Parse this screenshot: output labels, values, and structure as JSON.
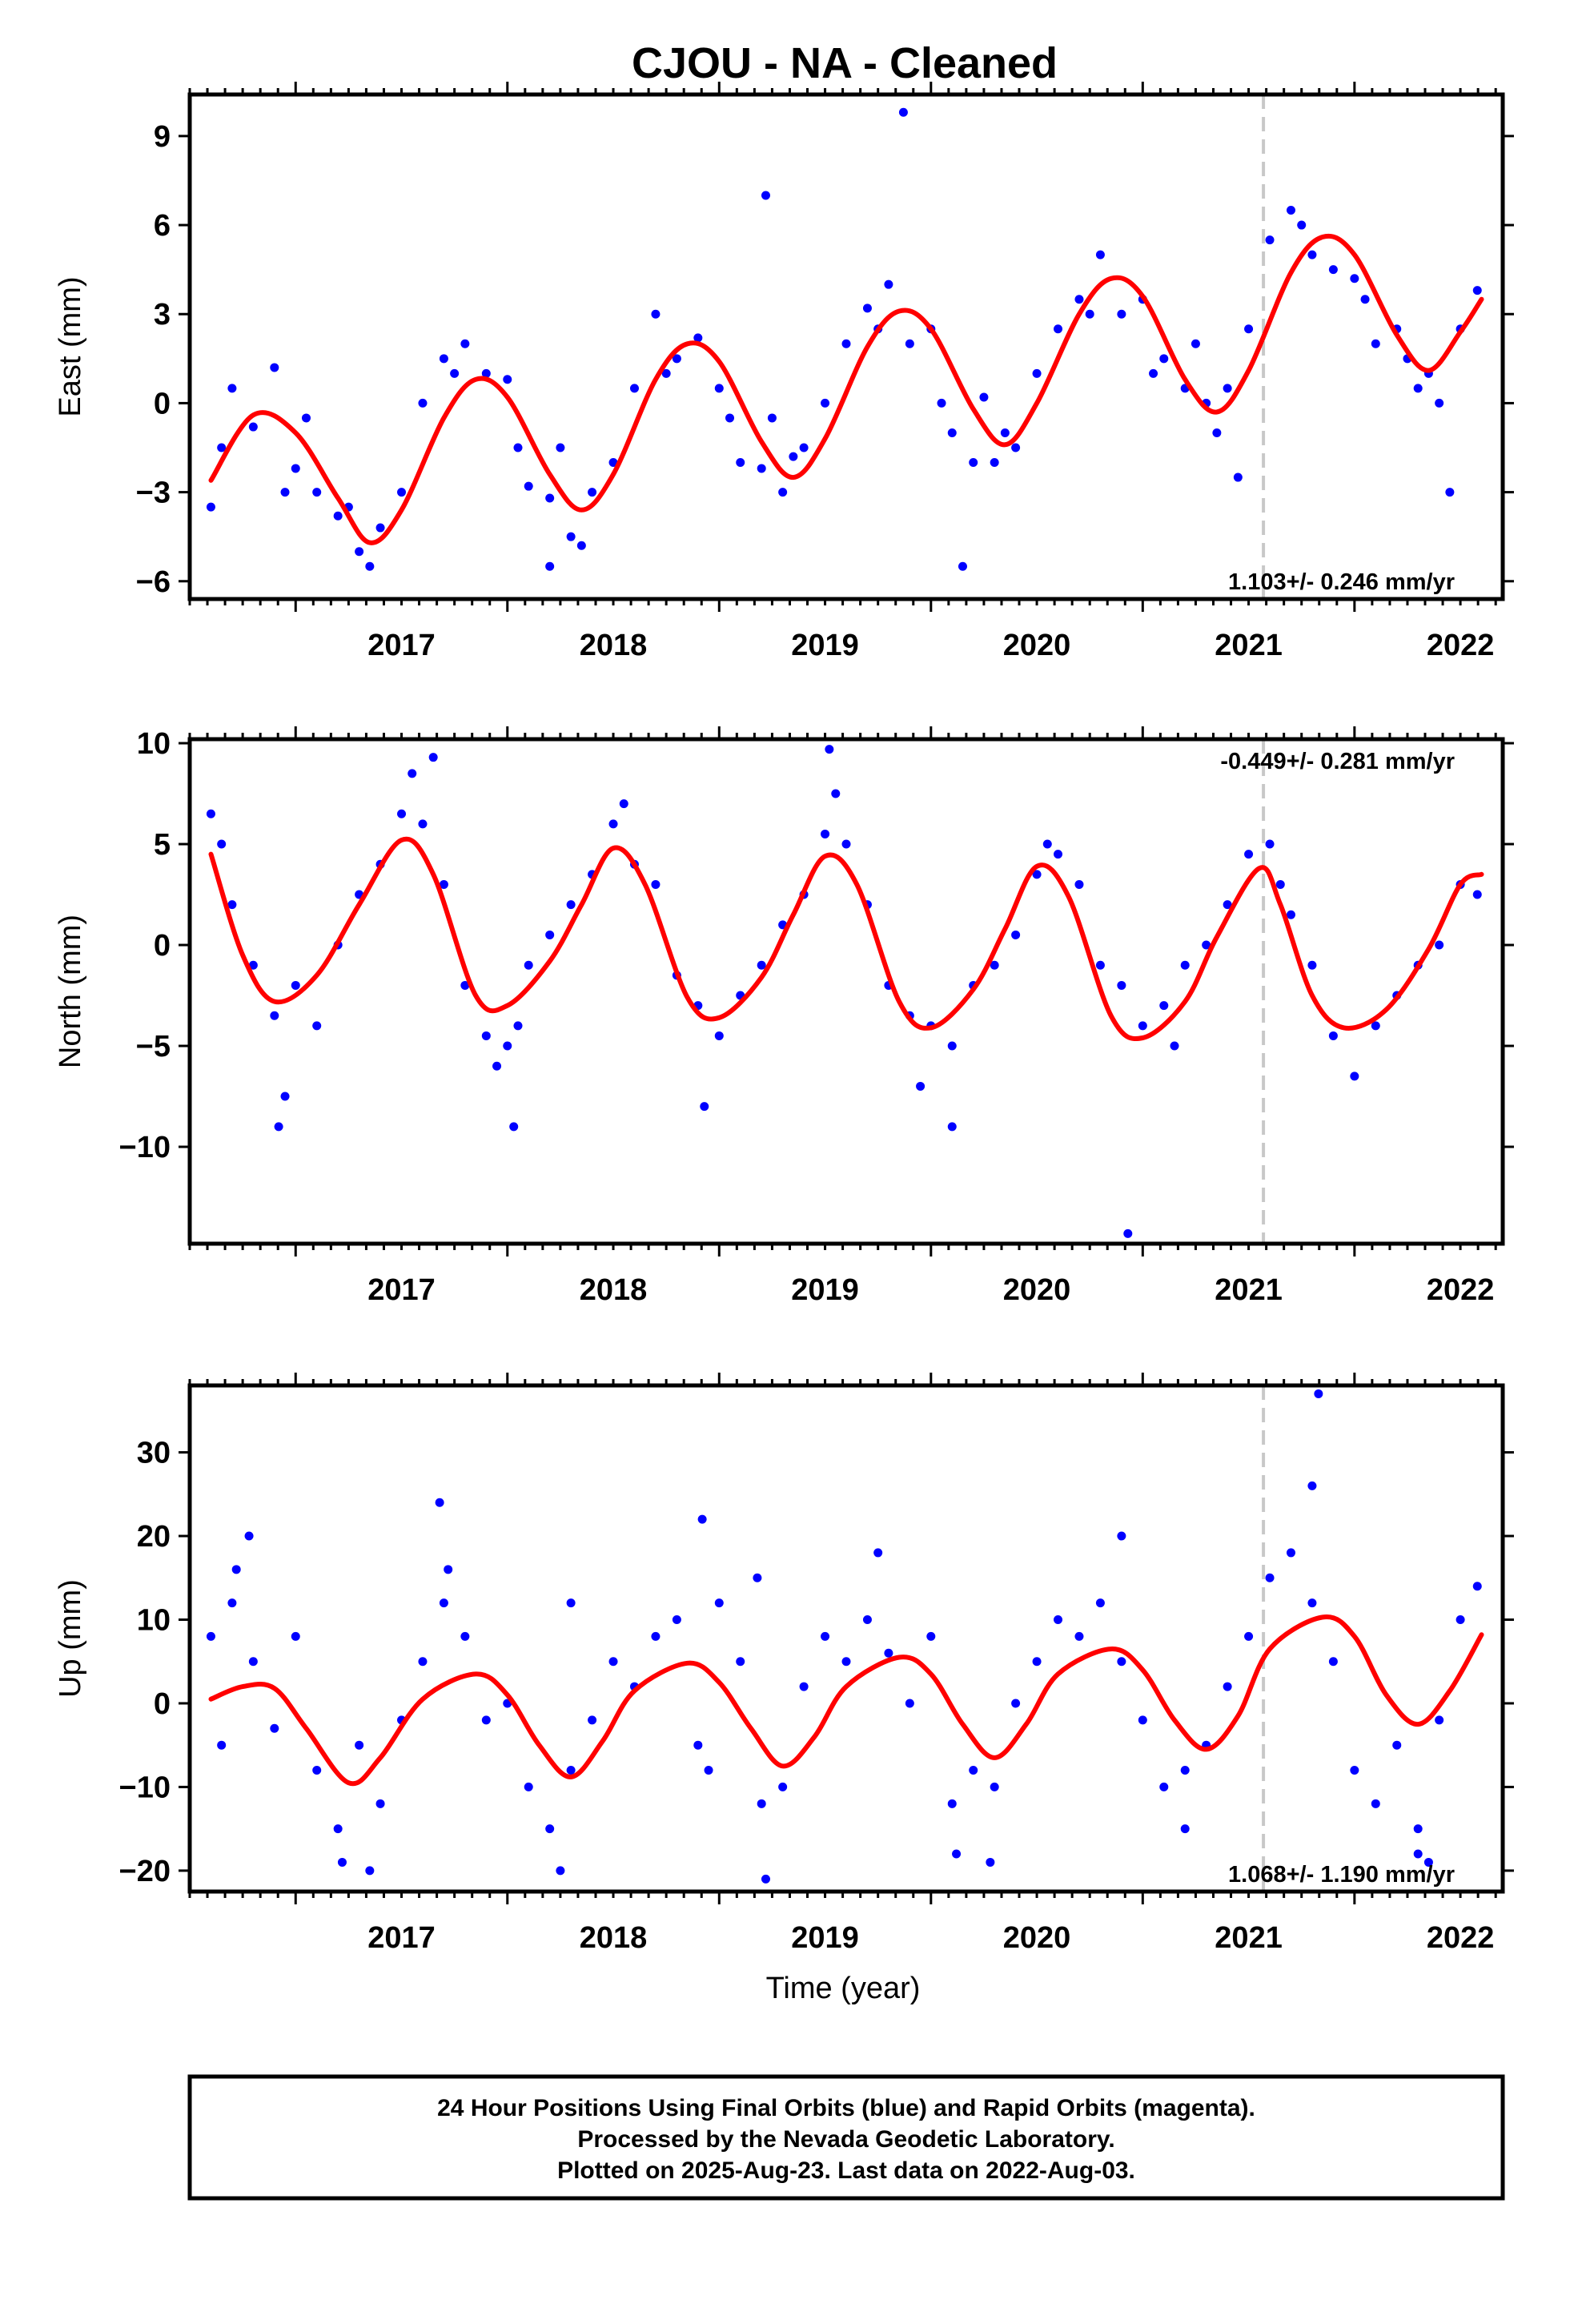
{
  "title": "CJOU  - NA - Cleaned",
  "xlabel": "Time (year)",
  "footer": {
    "line1": "24 Hour Positions Using Final Orbits (blue) and Rapid Orbits (magenta).",
    "line2": "Processed by the Nevada Geodetic Laboratory.",
    "line3": "Plotted on 2025-Aug-23. Last data on 2022-Aug-03."
  },
  "colors": {
    "points": "#0000ff",
    "fit": "#ff0000",
    "equipment_change": "#c8c8c8",
    "frame": "#000000"
  },
  "chart_data": [
    {
      "type": "scatter",
      "ylabel": "East (mm)",
      "xlim": [
        2016.5,
        2022.7
      ],
      "ylim": [
        -6.6,
        10.4
      ],
      "xticks": [
        2017,
        2018,
        2019,
        2020,
        2021,
        2022
      ],
      "yticks": [
        -6,
        -3,
        0,
        3,
        6,
        9
      ],
      "rate_text": "1.103+/- 0.246 mm/yr",
      "rate_position": "bottom-right",
      "equipment_change_x": 2021.57,
      "series": [
        {
          "style": "fit-line",
          "x": [
            2016.6,
            2016.8,
            2017.0,
            2017.2,
            2017.35,
            2017.5,
            2017.7,
            2017.85,
            2018.0,
            2018.2,
            2018.35,
            2018.5,
            2018.7,
            2018.85,
            2019.0,
            2019.2,
            2019.35,
            2019.5,
            2019.7,
            2019.85,
            2020.0,
            2020.2,
            2020.35,
            2020.5,
            2020.7,
            2020.85,
            2021.0,
            2021.2,
            2021.35,
            2021.5,
            2021.7,
            2021.85,
            2022.0,
            2022.2,
            2022.35,
            2022.5,
            2022.6
          ],
          "y": [
            -2.6,
            -0.4,
            -1.0,
            -3.2,
            -4.7,
            -3.6,
            -0.5,
            0.8,
            0.2,
            -2.4,
            -3.6,
            -2.4,
            0.8,
            2.0,
            1.4,
            -1.3,
            -2.5,
            -1.2,
            1.9,
            3.1,
            2.5,
            -0.2,
            -1.4,
            0.0,
            3.0,
            4.2,
            3.6,
            0.8,
            -0.3,
            1.1,
            4.4,
            5.6,
            5.0,
            2.3,
            1.1,
            2.4,
            3.5
          ]
        },
        {
          "style": "daily-points",
          "x": [
            2016.6,
            2016.65,
            2016.7,
            2016.8,
            2016.9,
            2017.0,
            2017.05,
            2017.1,
            2017.2,
            2017.3,
            2017.35,
            2017.4,
            2017.5,
            2017.6,
            2017.7,
            2017.8,
            2017.9,
            2018.0,
            2018.05,
            2018.1,
            2018.2,
            2018.3,
            2018.35,
            2018.4,
            2018.5,
            2018.6,
            2018.7,
            2018.8,
            2018.9,
            2019.0,
            2019.05,
            2019.1,
            2019.2,
            2019.3,
            2019.35,
            2019.4,
            2019.5,
            2019.6,
            2019.7,
            2019.8,
            2019.9,
            2020.0,
            2020.05,
            2020.1,
            2020.2,
            2020.3,
            2020.35,
            2020.4,
            2020.5,
            2020.6,
            2020.7,
            2020.8,
            2020.9,
            2021.0,
            2021.05,
            2021.1,
            2021.2,
            2021.3,
            2021.35,
            2021.4,
            2021.5,
            2021.6,
            2021.7,
            2021.8,
            2021.9,
            2022.0,
            2022.05,
            2022.1,
            2022.2,
            2022.3,
            2022.35,
            2022.4,
            2022.5,
            2022.58,
            2016.95,
            2017.25,
            2017.75,
            2018.25,
            2018.75,
            2019.25,
            2019.75,
            2020.25,
            2020.75,
            2021.25,
            2021.75,
            2022.25,
            2019.22,
            2019.87,
            2018.2,
            2020.15,
            2021.45,
            2022.45
          ],
          "y": [
            -3.5,
            -1.5,
            0.5,
            -0.8,
            1.2,
            -2.2,
            -0.5,
            -3.0,
            -3.8,
            -5.0,
            -5.5,
            -4.2,
            -3.0,
            0.0,
            1.5,
            2.0,
            1.0,
            0.8,
            -1.5,
            -2.8,
            -3.2,
            -4.5,
            -4.8,
            -3.0,
            -2.0,
            0.5,
            3.0,
            1.5,
            2.2,
            0.5,
            -0.5,
            -2.0,
            -2.2,
            -3.0,
            -1.8,
            -1.5,
            0.0,
            2.0,
            3.2,
            4.0,
            2.0,
            2.5,
            0.0,
            -1.0,
            -2.0,
            -2.0,
            -1.0,
            -1.5,
            1.0,
            2.5,
            3.5,
            5.0,
            3.0,
            3.5,
            1.0,
            1.5,
            0.5,
            0.0,
            -1.0,
            0.5,
            2.5,
            5.5,
            6.5,
            5.0,
            4.5,
            4.2,
            3.5,
            2.0,
            2.5,
            0.5,
            1.0,
            0.0,
            2.5,
            3.8,
            -3.0,
            -3.5,
            1.0,
            -1.5,
            1.0,
            -0.5,
            2.5,
            0.2,
            3.0,
            2.0,
            6.0,
            1.5,
            7.0,
            9.8,
            -5.5,
            -5.5,
            -2.5,
            -3.0
          ]
        }
      ]
    },
    {
      "type": "scatter",
      "ylabel": "North (mm)",
      "xlim": [
        2016.5,
        2022.7
      ],
      "ylim": [
        -14.8,
        10.2
      ],
      "xticks": [
        2017,
        2018,
        2019,
        2020,
        2021,
        2022
      ],
      "yticks": [
        -10,
        -5,
        0,
        5,
        10
      ],
      "rate_text": "-0.449+/- 0.281 mm/yr",
      "rate_position": "top-right",
      "equipment_change_x": 2021.57,
      "series": [
        {
          "style": "fit-line",
          "x": [
            2016.6,
            2016.75,
            2016.9,
            2017.1,
            2017.3,
            2017.5,
            2017.65,
            2017.85,
            2018.0,
            2018.2,
            2018.35,
            2018.5,
            2018.65,
            2018.85,
            2019.0,
            2019.2,
            2019.35,
            2019.5,
            2019.65,
            2019.85,
            2020.0,
            2020.2,
            2020.35,
            2020.5,
            2020.65,
            2020.85,
            2021.0,
            2021.2,
            2021.35,
            2021.55,
            2021.65,
            2021.8,
            2021.95,
            2022.15,
            2022.35,
            2022.5,
            2022.6
          ],
          "y": [
            4.5,
            -0.5,
            -2.8,
            -1.5,
            2.0,
            5.2,
            3.5,
            -2.5,
            -3.0,
            -0.8,
            2.0,
            4.8,
            3.0,
            -2.6,
            -3.6,
            -1.6,
            1.5,
            4.4,
            3.0,
            -2.8,
            -4.1,
            -2.2,
            0.8,
            3.9,
            2.4,
            -3.5,
            -4.6,
            -2.8,
            0.4,
            3.8,
            2.0,
            -2.5,
            -4.1,
            -3.2,
            -0.2,
            3.0,
            3.5
          ]
        },
        {
          "style": "daily-points",
          "x": [
            2016.6,
            2016.65,
            2016.7,
            2016.8,
            2016.9,
            2017.0,
            2017.1,
            2017.2,
            2017.3,
            2017.4,
            2017.5,
            2017.6,
            2017.7,
            2017.8,
            2017.9,
            2018.0,
            2018.05,
            2018.1,
            2018.2,
            2018.3,
            2018.4,
            2018.5,
            2018.6,
            2018.7,
            2018.8,
            2018.9,
            2019.0,
            2019.1,
            2019.2,
            2019.3,
            2019.4,
            2019.5,
            2019.6,
            2019.7,
            2019.8,
            2019.9,
            2020.0,
            2020.1,
            2020.2,
            2020.3,
            2020.4,
            2020.5,
            2020.6,
            2020.7,
            2020.8,
            2020.9,
            2021.0,
            2021.1,
            2021.2,
            2021.3,
            2021.4,
            2021.5,
            2021.6,
            2021.7,
            2021.8,
            2021.9,
            2022.0,
            2022.1,
            2022.2,
            2022.3,
            2022.4,
            2022.5,
            2022.58,
            2016.95,
            2017.55,
            2017.95,
            2018.55,
            2019.55,
            2020.55,
            2021.15,
            2021.65,
            2016.92,
            2017.65,
            2018.03,
            2019.52,
            2019.95,
            2020.1,
            2020.93,
            2018.93
          ],
          "y": [
            6.5,
            5.0,
            2.0,
            -1.0,
            -3.5,
            -2.0,
            -4.0,
            0.0,
            2.5,
            4.0,
            6.5,
            6.0,
            3.0,
            -2.0,
            -4.5,
            -5.0,
            -4.0,
            -1.0,
            0.5,
            2.0,
            3.5,
            6.0,
            4.0,
            3.0,
            -1.5,
            -3.0,
            -4.5,
            -2.5,
            -1.0,
            1.0,
            2.5,
            5.5,
            5.0,
            2.0,
            -2.0,
            -3.5,
            -4.0,
            -5.0,
            -2.0,
            -1.0,
            0.5,
            3.5,
            4.5,
            3.0,
            -1.0,
            -2.0,
            -4.0,
            -3.0,
            -1.0,
            0.0,
            2.0,
            4.5,
            5.0,
            1.5,
            -1.0,
            -4.5,
            -6.5,
            -4.0,
            -2.5,
            -1.0,
            0.0,
            3.0,
            2.5,
            -7.5,
            8.5,
            -6.0,
            7.0,
            7.5,
            5.0,
            -5.0,
            3.0,
            -9.0,
            9.3,
            -9.0,
            9.7,
            -7.0,
            -9.0,
            -14.3,
            -8.0
          ]
        }
      ]
    },
    {
      "type": "scatter",
      "ylabel": "Up (mm)",
      "xlim": [
        2016.5,
        2022.7
      ],
      "ylim": [
        -22.5,
        38.0
      ],
      "xticks": [
        2017,
        2018,
        2019,
        2020,
        2021,
        2022
      ],
      "yticks": [
        -20,
        -10,
        0,
        10,
        20,
        30
      ],
      "rate_text": "1.068+/- 1.190 mm/yr",
      "rate_position": "bottom-right",
      "equipment_change_x": 2021.57,
      "series": [
        {
          "style": "fit-line",
          "x": [
            2016.6,
            2016.75,
            2016.9,
            2017.05,
            2017.25,
            2017.4,
            2017.6,
            2017.85,
            2018.0,
            2018.15,
            2018.3,
            2018.45,
            2018.6,
            2018.85,
            2019.0,
            2019.15,
            2019.3,
            2019.45,
            2019.6,
            2019.85,
            2020.0,
            2020.15,
            2020.3,
            2020.45,
            2020.6,
            2020.85,
            2021.0,
            2021.15,
            2021.3,
            2021.45,
            2021.6,
            2021.85,
            2022.0,
            2022.15,
            2022.3,
            2022.45,
            2022.6
          ],
          "y": [
            0.5,
            2.0,
            1.8,
            -3.0,
            -9.5,
            -6.5,
            0.5,
            3.5,
            1.0,
            -5.0,
            -8.8,
            -4.5,
            1.5,
            4.8,
            2.5,
            -3.0,
            -7.5,
            -4.0,
            2.0,
            5.5,
            3.5,
            -2.5,
            -6.5,
            -2.5,
            3.5,
            6.5,
            4.0,
            -2.0,
            -5.5,
            -1.5,
            6.5,
            10.3,
            8.0,
            1.0,
            -2.5,
            1.5,
            8.2
          ]
        },
        {
          "style": "daily-points",
          "x": [
            2016.6,
            2016.65,
            2016.7,
            2016.8,
            2016.9,
            2017.0,
            2017.1,
            2017.2,
            2017.3,
            2017.4,
            2017.5,
            2017.6,
            2017.7,
            2017.8,
            2017.9,
            2018.0,
            2018.1,
            2018.2,
            2018.3,
            2018.4,
            2018.5,
            2018.6,
            2018.7,
            2018.8,
            2018.9,
            2019.0,
            2019.1,
            2019.2,
            2019.3,
            2019.4,
            2019.5,
            2019.6,
            2019.7,
            2019.8,
            2019.9,
            2020.0,
            2020.1,
            2020.2,
            2020.3,
            2020.4,
            2020.5,
            2020.6,
            2020.7,
            2020.8,
            2020.9,
            2021.0,
            2021.1,
            2021.2,
            2021.3,
            2021.4,
            2021.5,
            2021.6,
            2021.7,
            2021.8,
            2021.9,
            2022.0,
            2022.1,
            2022.2,
            2022.3,
            2022.4,
            2022.5,
            2022.58,
            2016.78,
            2017.22,
            2017.68,
            2018.25,
            2018.92,
            2019.22,
            2019.75,
            2020.12,
            2020.9,
            2021.2,
            2021.8,
            2022.3,
            2016.72,
            2017.35,
            2017.72,
            2018.3,
            2018.95,
            2019.18,
            2020.28,
            2021.83,
            2022.35
          ],
          "y": [
            8.0,
            -5.0,
            12.0,
            5.0,
            -3.0,
            8.0,
            -8.0,
            -15.0,
            -5.0,
            -12.0,
            -2.0,
            5.0,
            12.0,
            8.0,
            -2.0,
            0.0,
            -10.0,
            -15.0,
            -8.0,
            -2.0,
            5.0,
            2.0,
            8.0,
            10.0,
            -5.0,
            12.0,
            5.0,
            -12.0,
            -10.0,
            2.0,
            8.0,
            5.0,
            10.0,
            6.0,
            0.0,
            8.0,
            -12.0,
            -8.0,
            -10.0,
            0.0,
            5.0,
            10.0,
            8.0,
            12.0,
            5.0,
            -2.0,
            -10.0,
            -8.0,
            -5.0,
            2.0,
            8.0,
            15.0,
            18.0,
            12.0,
            5.0,
            -8.0,
            -12.0,
            -5.0,
            -15.0,
            -2.0,
            10.0,
            14.0,
            20.0,
            -19.0,
            24.0,
            -20.0,
            22.0,
            -21.0,
            18.0,
            -18.0,
            20.0,
            -15.0,
            26.0,
            -18.0,
            16.0,
            -20.0,
            16.0,
            12.0,
            -8.0,
            15.0,
            -19.0,
            37.0,
            -19.0
          ]
        }
      ]
    }
  ]
}
